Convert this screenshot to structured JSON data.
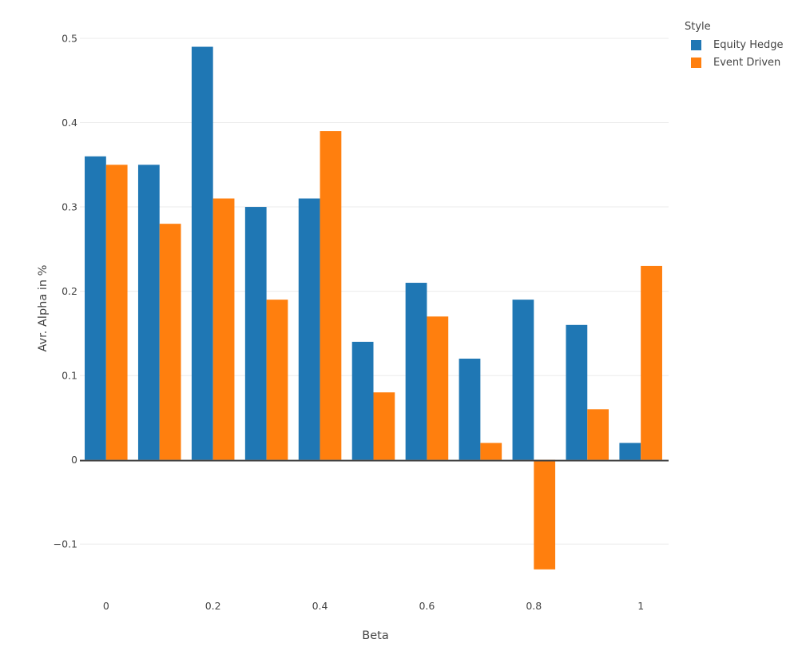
{
  "chart_data": {
    "type": "bar",
    "title": "",
    "xlabel": "Beta",
    "ylabel": "Avr. Alpha in %",
    "legend_title": "Style",
    "legend_position": "top-right",
    "grid": "horizontal",
    "categories": [
      0,
      0.1,
      0.2,
      0.3,
      0.4,
      0.5,
      0.6,
      0.7,
      0.8,
      0.9,
      1.0
    ],
    "series": [
      {
        "name": "Equity Hedge",
        "color": "#1f77b4",
        "values": [
          0.36,
          0.35,
          0.49,
          0.3,
          0.31,
          0.14,
          0.21,
          0.12,
          0.19,
          0.16,
          0.02
        ]
      },
      {
        "name": "Event Driven",
        "color": "#ff7f0e",
        "values": [
          0.35,
          0.28,
          0.31,
          0.19,
          0.39,
          0.08,
          0.17,
          0.02,
          -0.13,
          0.06,
          0.23
        ]
      }
    ],
    "xticks": [
      0,
      0.2,
      0.4,
      0.6,
      0.8,
      1
    ],
    "yticks": [
      -0.1,
      0,
      0.1,
      0.2,
      0.3,
      0.4,
      0.5
    ],
    "xlim": [
      -0.049,
      1.052
    ],
    "ylim": [
      -0.151,
      0.536
    ],
    "bar_half_width": 0.04
  },
  "colors": {
    "background": "#ffffff",
    "gridline": "#ebebeb",
    "zero_line": "#424242",
    "text": "#444444"
  }
}
